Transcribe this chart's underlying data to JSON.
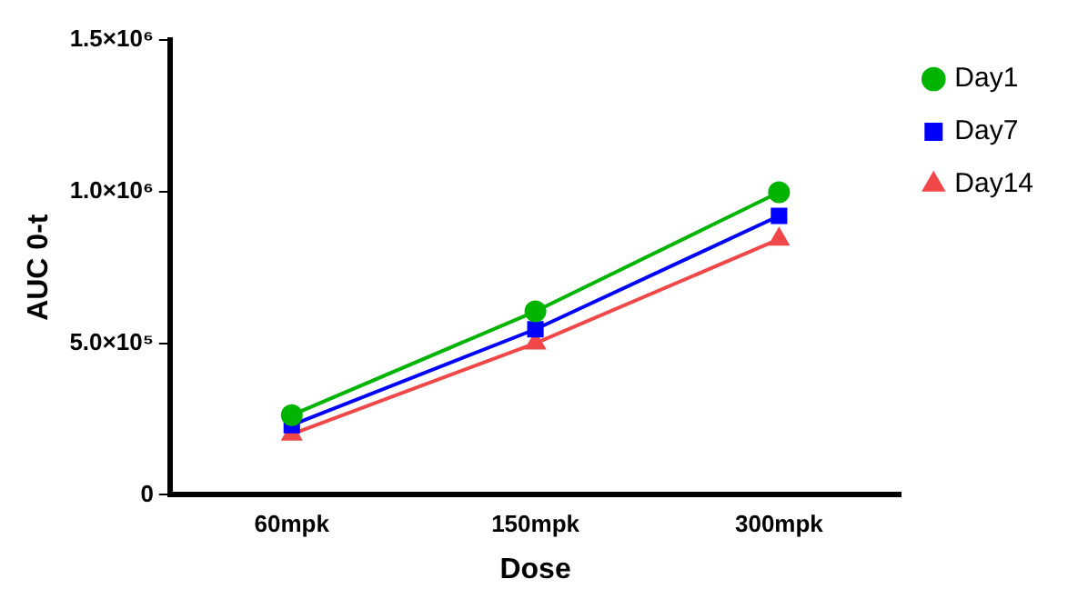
{
  "chart_data": {
    "type": "line",
    "xlabel": "Dose",
    "ylabel": "AUC 0-t",
    "categories": [
      "60mpk",
      "150mpk",
      "300mpk"
    ],
    "series": [
      {
        "name": "Day1",
        "color": "#00b400",
        "marker": "circle",
        "values": [
          263000,
          605000,
          998000
        ]
      },
      {
        "name": "Day7",
        "color": "#0000ff",
        "marker": "square",
        "values": [
          230000,
          546000,
          920000
        ]
      },
      {
        "name": "Day14",
        "color": "#f04848",
        "marker": "triangle",
        "values": [
          200000,
          500000,
          843000
        ]
      }
    ],
    "ylim": [
      0,
      1500000
    ],
    "yticks": [
      0,
      {
        "value": 500000,
        "label": "5.0×10⁵"
      },
      {
        "value": 1000000,
        "label": "1.0×10⁶"
      },
      {
        "value": 1500000,
        "label": "1.5×10⁶"
      }
    ],
    "grid": false,
    "legend": "right",
    "line_style": "solid"
  }
}
